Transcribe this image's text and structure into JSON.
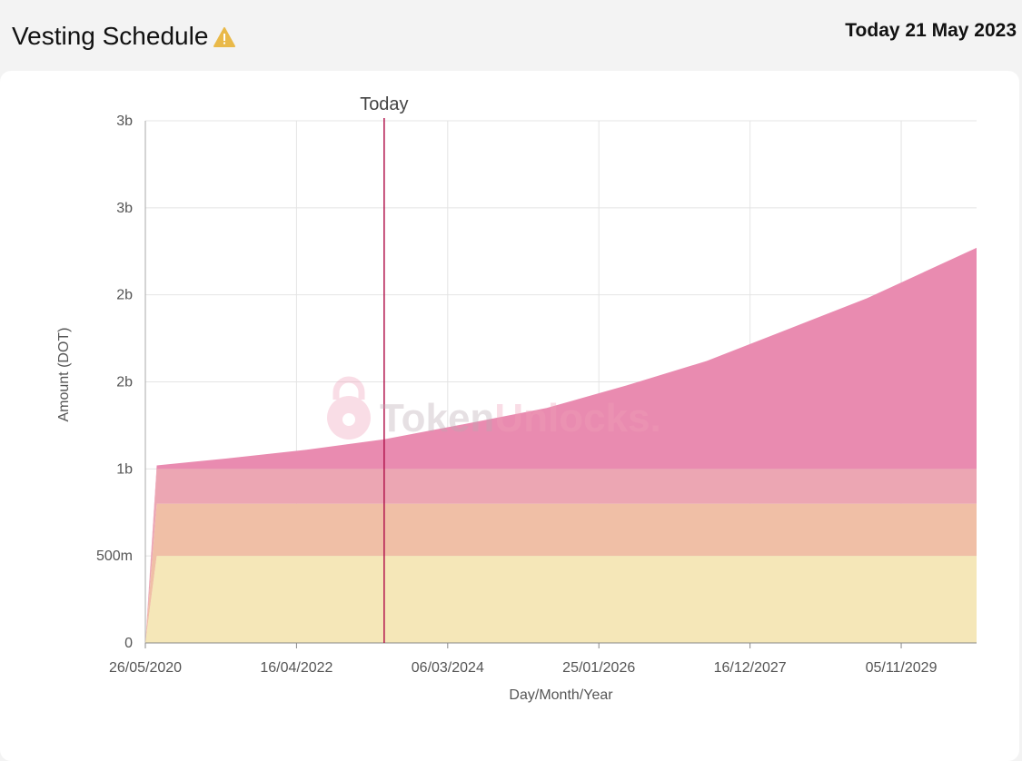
{
  "header": {
    "title": "Vesting Schedule",
    "today_label": "Today 21 May 2023"
  },
  "watermark": {
    "part1": "Token",
    "part2": "Unlocks."
  },
  "chart_data": {
    "type": "area",
    "stacked": true,
    "xlabel": "Day/Month/Year",
    "ylabel": "Amount (DOT)",
    "x_range": [
      "2020-05-26",
      "2030-10-15"
    ],
    "x_ticks": [
      "2020-05-26",
      "2022-04-16",
      "2024-03-06",
      "2026-01-25",
      "2027-12-16",
      "2029-11-05"
    ],
    "x_tick_labels": [
      "26/05/2020",
      "16/04/2022",
      "06/03/2024",
      "25/01/2026",
      "16/12/2027",
      "05/11/2029"
    ],
    "y_range": [
      0,
      3000000000
    ],
    "y_ticks": [
      0,
      500000000,
      1000000000,
      1500000000,
      2000000000,
      2500000000,
      3000000000
    ],
    "y_tick_labels": [
      "0",
      "500m",
      "1b",
      "2b",
      "2b",
      "3b",
      "3b"
    ],
    "grid": true,
    "today_marker": {
      "date": "2023-05-21",
      "label": "Today"
    },
    "series": [
      {
        "color": "#f5e7b8",
        "points": [
          [
            "2020-05-26",
            0
          ],
          [
            "2020-07-17",
            500000000
          ],
          [
            "2030-10-15",
            500000000
          ]
        ]
      },
      {
        "color": "#f0bfa6",
        "points": [
          [
            "2020-05-26",
            0
          ],
          [
            "2020-07-17",
            300000000
          ],
          [
            "2030-10-15",
            300000000
          ]
        ]
      },
      {
        "color": "#eca6b3",
        "points": [
          [
            "2020-05-26",
            0
          ],
          [
            "2020-07-17",
            200000000
          ],
          [
            "2030-10-15",
            200000000
          ]
        ]
      },
      {
        "color": "#e98bb0",
        "points": [
          [
            "2020-05-26",
            0
          ],
          [
            "2020-07-17",
            20000000
          ],
          [
            "2021-06-01",
            60000000
          ],
          [
            "2022-06-01",
            110000000
          ],
          [
            "2023-05-21",
            170000000
          ],
          [
            "2024-06-01",
            260000000
          ],
          [
            "2025-06-01",
            350000000
          ],
          [
            "2026-06-01",
            480000000
          ],
          [
            "2027-06-01",
            620000000
          ],
          [
            "2028-06-01",
            800000000
          ],
          [
            "2029-06-01",
            980000000
          ],
          [
            "2030-10-15",
            1270000000
          ]
        ]
      }
    ]
  }
}
